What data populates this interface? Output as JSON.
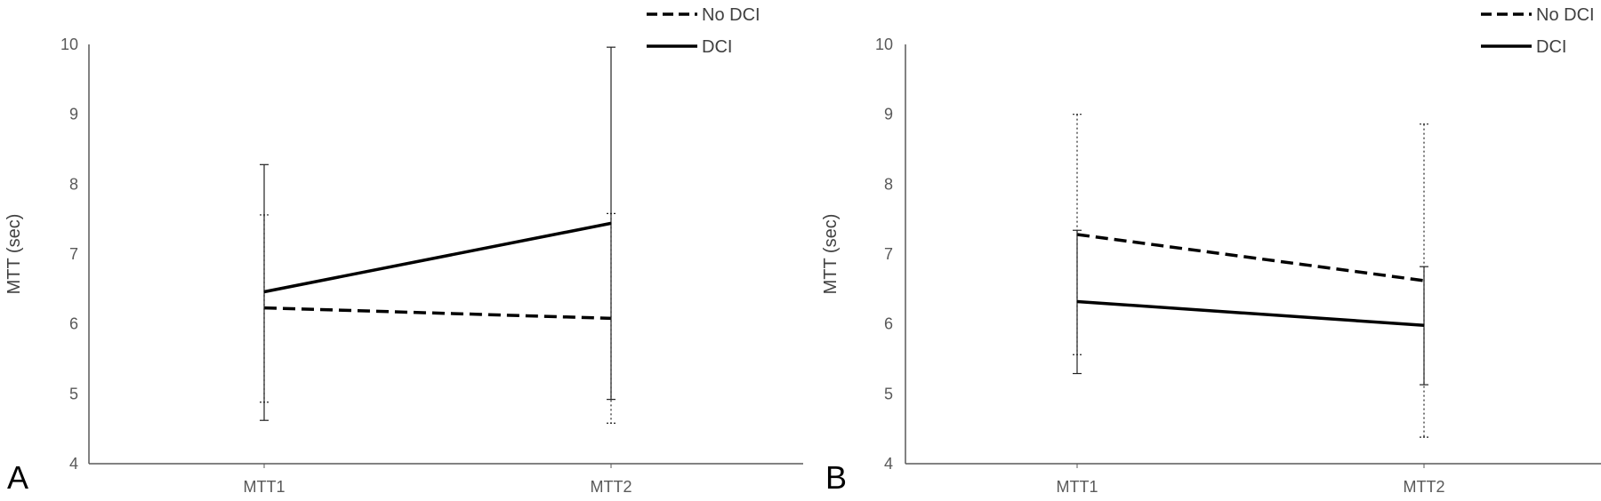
{
  "chart_data": [
    {
      "type": "line",
      "panel_label": "A",
      "categories": [
        "MTT1",
        "MTT2"
      ],
      "ylabel": "MTT (sec)",
      "ylim": [
        4,
        10
      ],
      "yticks": [
        "4",
        "5",
        "6",
        "7",
        "8",
        "9",
        "10"
      ],
      "grid": false,
      "legend_position": "top-right",
      "series": [
        {
          "name": "No DCI",
          "style": "dashed",
          "values": [
            6.23,
            6.08
          ],
          "error_low": [
            4.88,
            4.58
          ],
          "error_high": [
            7.56,
            7.58
          ]
        },
        {
          "name": "DCI",
          "style": "solid",
          "values": [
            6.46,
            7.44
          ],
          "error_low": [
            4.62,
            4.92
          ],
          "error_high": [
            8.28,
            9.96
          ]
        }
      ]
    },
    {
      "type": "line",
      "panel_label": "B",
      "categories": [
        "MTT1",
        "MTT2"
      ],
      "ylabel": "MTT (sec)",
      "ylim": [
        4,
        10
      ],
      "yticks": [
        "4",
        "5",
        "6",
        "7",
        "8",
        "9",
        "10"
      ],
      "grid": false,
      "legend_position": "top-right",
      "series": [
        {
          "name": "No DCI",
          "style": "dashed",
          "values": [
            7.28,
            6.62
          ],
          "error_low": [
            5.56,
            4.38
          ],
          "error_high": [
            9.0,
            8.86
          ]
        },
        {
          "name": "DCI",
          "style": "solid",
          "values": [
            6.32,
            5.98
          ],
          "error_low": [
            5.29,
            5.13
          ],
          "error_high": [
            7.34,
            6.82
          ]
        }
      ]
    }
  ]
}
